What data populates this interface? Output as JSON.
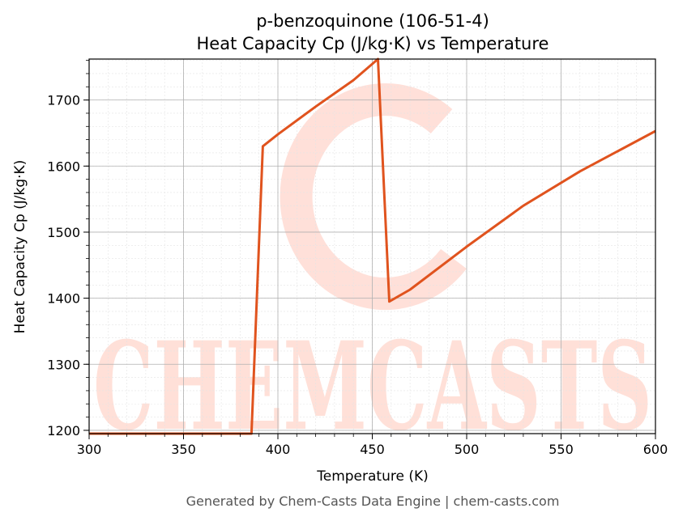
{
  "chart_data": {
    "type": "line",
    "title": "p-benzoquinone (106-51-4)",
    "subtitle": "Heat Capacity Cp (J/kg·K) vs Temperature",
    "xlabel": "Temperature (K)",
    "ylabel": "Heat Capacity Cp (J/kg·K)",
    "xlim": [
      300,
      600
    ],
    "ylim": [
      1195,
      1762
    ],
    "xticks": [
      300,
      350,
      400,
      450,
      500,
      550,
      600
    ],
    "yticks": [
      1200,
      1300,
      1400,
      1500,
      1600,
      1700
    ],
    "grid": true,
    "legend": "none",
    "series": [
      {
        "color": "#e0531e",
        "x": [
          300,
          386,
          392,
          400,
          420,
          440,
          453,
          459,
          470,
          500,
          530,
          560,
          600
        ],
        "y": [
          1195,
          1195,
          1630,
          1648,
          1690,
          1730,
          1762,
          1395,
          1413,
          1478,
          1540,
          1592,
          1653
        ]
      }
    ]
  },
  "watermark": {
    "text": "CHEMCASTS",
    "color": "#ffd6cc"
  },
  "footer": "Generated by Chem-Casts Data Engine | chem-casts.com"
}
